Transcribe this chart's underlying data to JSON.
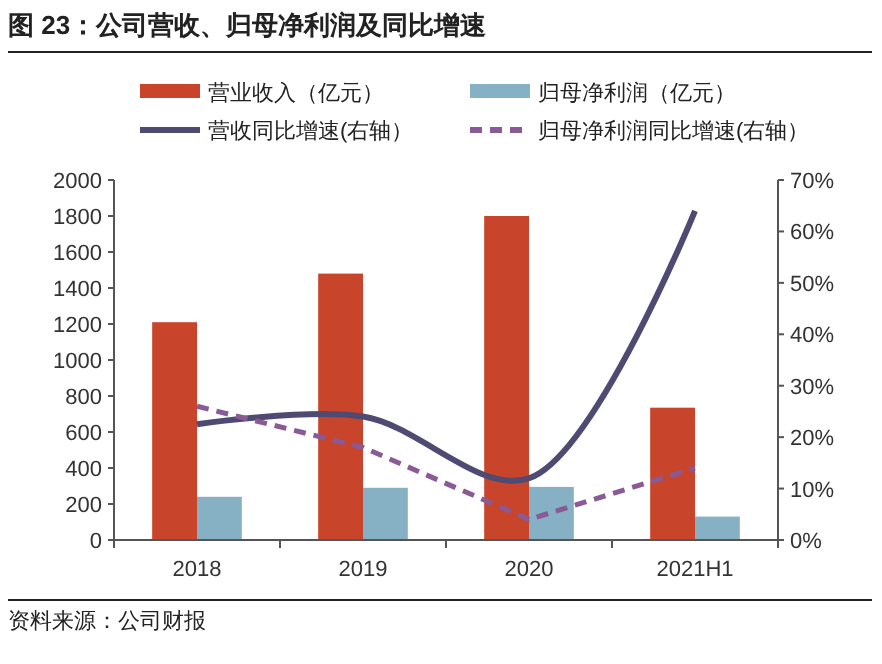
{
  "chart_data": {
    "type": "bar",
    "title": "图 23：公司营收、归母净利润及同比增速",
    "categories": [
      "2018",
      "2019",
      "2020",
      "2021H1"
    ],
    "series": [
      {
        "name": "营业收入（亿元）",
        "color": "#c8442a",
        "values": [
          1210,
          1480,
          1800,
          735
        ]
      },
      {
        "name": "归母净利润（亿元）",
        "color": "#86b0c4",
        "values": [
          240,
          290,
          295,
          130
        ]
      },
      {
        "name": "营收同比增速(右轴）",
        "type": "line",
        "axis": "y2",
        "color": "#4f4a72",
        "line_style": "solid",
        "values": [
          22.5,
          24,
          12,
          64
        ]
      },
      {
        "name": "归母净利润同比增速(右轴）",
        "type": "line",
        "axis": "y2",
        "color": "#8a5a96",
        "line_style": "dashed",
        "values": [
          26,
          18,
          4,
          14
        ]
      }
    ],
    "ylim": [
      0,
      2000
    ],
    "yticks": [
      0,
      200,
      400,
      600,
      800,
      1000,
      1200,
      1400,
      1600,
      1800,
      2000
    ],
    "y2lim": [
      0,
      70
    ],
    "y2ticks": [
      {
        "value": 0,
        "label": "0%"
      },
      {
        "value": 10,
        "label": "10%"
      },
      {
        "value": 20,
        "label": "20%"
      },
      {
        "value": 30,
        "label": "30%"
      },
      {
        "value": 40,
        "label": "40%"
      },
      {
        "value": 50,
        "label": "50%"
      },
      {
        "value": 60,
        "label": "60%"
      },
      {
        "value": 70,
        "label": "70%"
      }
    ],
    "legend": "top",
    "grid": false,
    "annotations": [
      "资料来源：公司财报"
    ]
  }
}
